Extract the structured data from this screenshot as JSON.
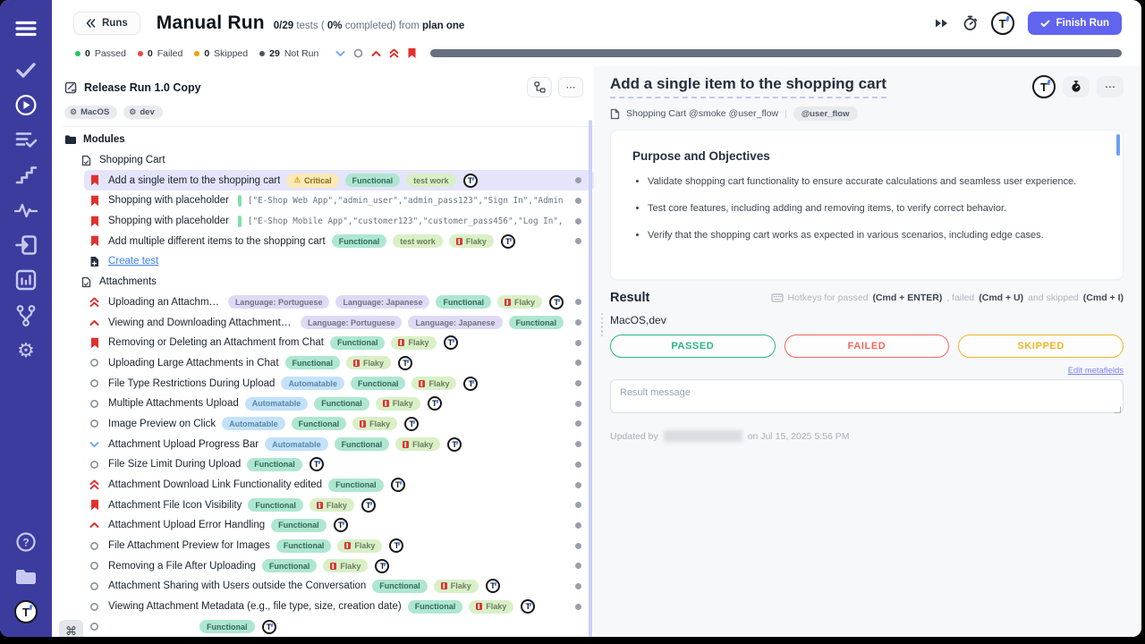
{
  "colors": {
    "accent": "#6064ee",
    "rail": "#3c3c9f",
    "passed": "#2cb386",
    "failed": "#f2685f",
    "skipped": "#f0b429",
    "critical": "#e0312f"
  },
  "sidebar": {
    "top": [
      "menu",
      "check",
      "play",
      "list-check",
      "steps",
      "pulse",
      "signin",
      "chart",
      "branch",
      "gear"
    ],
    "bottom": [
      "help",
      "folder",
      "logo"
    ],
    "active": "play"
  },
  "header": {
    "back_label": "Runs",
    "title": "Manual Run",
    "counts": "0/29",
    "tests_label": "tests (",
    "percent": "0%",
    "completed_label": "completed) from",
    "plan_name": "plan one",
    "finish_label": "Finish Run"
  },
  "status_bar": {
    "stats": [
      {
        "value": "0",
        "label": "Passed",
        "color": "#22c55e"
      },
      {
        "value": "0",
        "label": "Failed",
        "color": "#ef4444"
      },
      {
        "value": "0",
        "label": "Skipped",
        "color": "#f59e0b"
      },
      {
        "value": "29",
        "label": "Not Run",
        "color": "#4b5563"
      }
    ]
  },
  "left_panel": {
    "run_title": "Release Run 1.0 Copy",
    "tags": [
      "MacOS",
      "dev"
    ],
    "shortcut_key": "⌘",
    "rows": [
      {
        "kind": "folder",
        "title": "Modules"
      },
      {
        "kind": "file",
        "title": "Shopping Cart"
      },
      {
        "kind": "test",
        "icon": "bookmark",
        "selected": true,
        "logo": true,
        "dotted": true,
        "title": "Add a single item to the shopping cart",
        "badges": [
          {
            "t": "critical",
            "label": "Critical"
          },
          {
            "t": "functional",
            "label": "Functional"
          },
          {
            "t": "testwork",
            "label": "test work"
          }
        ]
      },
      {
        "kind": "test",
        "icon": "bookmark",
        "dotted": true,
        "title": "Shopping with placeholder",
        "code": "[\"E-Shop Web App\",\"admin_user\",\"admin_pass123\",\"Sign In\",\"Admin Dash…"
      },
      {
        "kind": "test",
        "icon": "bookmark",
        "dotted": true,
        "title": "Shopping with placeholder",
        "code": "[\"E-Shop Mobile App\",\"customer123\",\"customer_pass456\",\"Log In\",\"Welc…"
      },
      {
        "kind": "test",
        "icon": "bookmark",
        "logo": true,
        "dotted": true,
        "title": "Add multiple different items to the shopping cart",
        "badges": [
          {
            "t": "functional",
            "label": "Functional"
          },
          {
            "t": "testwork",
            "label": "test work"
          },
          {
            "t": "flaky",
            "label": "Flaky"
          }
        ]
      },
      {
        "kind": "create",
        "title": "Create test"
      },
      {
        "kind": "file",
        "title": "Attachments"
      },
      {
        "kind": "test",
        "icon": "chevup2",
        "logo": true,
        "dotted": true,
        "title": "Uploading an Attachment in Chat",
        "badges": [
          {
            "t": "language",
            "label": "Language: Portuguese"
          },
          {
            "t": "language",
            "label": "Language: Japanese"
          },
          {
            "t": "functional",
            "label": "Functional"
          },
          {
            "t": "flaky",
            "label": "Flaky"
          }
        ]
      },
      {
        "kind": "test",
        "icon": "chevup",
        "dotted": true,
        "title": "Viewing and Downloading Attachments in Chat",
        "badges": [
          {
            "t": "language",
            "label": "Language: Portuguese"
          },
          {
            "t": "language",
            "label": "Language: Japanese"
          },
          {
            "t": "functional",
            "label": "Functional"
          }
        ]
      },
      {
        "kind": "test",
        "icon": "bookmark",
        "logo": true,
        "dotted": true,
        "title": "Removing or Deleting an Attachment from Chat",
        "badges": [
          {
            "t": "functional",
            "label": "Functional"
          },
          {
            "t": "flaky",
            "label": "Flaky"
          }
        ]
      },
      {
        "kind": "test",
        "icon": "circle",
        "logo": true,
        "dotted": true,
        "title": "Uploading Large Attachments in Chat",
        "badges": [
          {
            "t": "functional",
            "label": "Functional"
          },
          {
            "t": "flaky",
            "label": "Flaky"
          }
        ]
      },
      {
        "kind": "test",
        "icon": "circle",
        "logo": true,
        "dotted": true,
        "title": "File Type Restrictions During Upload",
        "badges": [
          {
            "t": "automatable",
            "label": "Automatable"
          },
          {
            "t": "functional",
            "label": "Functional"
          },
          {
            "t": "flaky",
            "label": "Flaky"
          }
        ]
      },
      {
        "kind": "test",
        "icon": "circle",
        "logo": true,
        "dotted": true,
        "title": "Multiple Attachments Upload",
        "badges": [
          {
            "t": "automatable",
            "label": "Automatable"
          },
          {
            "t": "functional",
            "label": "Functional"
          },
          {
            "t": "flaky",
            "label": "Flaky"
          }
        ]
      },
      {
        "kind": "test",
        "icon": "circle",
        "logo": true,
        "dotted": true,
        "title": "Image Preview on Click",
        "badges": [
          {
            "t": "automatable",
            "label": "Automatable"
          },
          {
            "t": "functional",
            "label": "Functional"
          },
          {
            "t": "flaky",
            "label": "Flaky"
          }
        ]
      },
      {
        "kind": "test",
        "icon": "chevdown",
        "logo": true,
        "dotted": true,
        "title": "Attachment Upload Progress Bar",
        "badges": [
          {
            "t": "automatable",
            "label": "Automatable"
          },
          {
            "t": "functional",
            "label": "Functional"
          },
          {
            "t": "flaky",
            "label": "Flaky"
          }
        ]
      },
      {
        "kind": "test",
        "icon": "circle",
        "logo": true,
        "dotted": true,
        "title": "File Size Limit During Upload",
        "badges": [
          {
            "t": "functional",
            "label": "Functional"
          }
        ]
      },
      {
        "kind": "test",
        "icon": "chevup2",
        "logo": true,
        "dotted": true,
        "title": "Attachment Download Link Functionality edited",
        "badges": [
          {
            "t": "functional",
            "label": "Functional"
          }
        ]
      },
      {
        "kind": "test",
        "icon": "bookmark",
        "logo": true,
        "dotted": true,
        "title": "Attachment File Icon Visibility",
        "badges": [
          {
            "t": "functional",
            "label": "Functional"
          },
          {
            "t": "flaky",
            "label": "Flaky"
          }
        ]
      },
      {
        "kind": "test",
        "icon": "chevup",
        "logo": true,
        "dotted": true,
        "title": "Attachment Upload Error Handling",
        "badges": [
          {
            "t": "functional",
            "label": "Functional"
          }
        ]
      },
      {
        "kind": "test",
        "icon": "circle",
        "logo": true,
        "dotted": true,
        "title": "File Attachment Preview for Images",
        "badges": [
          {
            "t": "functional",
            "label": "Functional"
          },
          {
            "t": "flaky",
            "label": "Flaky"
          }
        ]
      },
      {
        "kind": "test",
        "icon": "circle",
        "logo": true,
        "dotted": true,
        "title": "Removing a File After Uploading",
        "badges": [
          {
            "t": "functional",
            "label": "Functional"
          },
          {
            "t": "flaky",
            "label": "Flaky"
          }
        ]
      },
      {
        "kind": "test",
        "icon": "circle",
        "logo": true,
        "dotted": true,
        "title": "Attachment Sharing with Users outside the Conversation",
        "badges": [
          {
            "t": "functional",
            "label": "Functional"
          },
          {
            "t": "flaky",
            "label": "Flaky"
          }
        ]
      },
      {
        "kind": "test",
        "icon": "circle",
        "logo": true,
        "dotted": true,
        "title": "Viewing Attachment Metadata (e.g., file type, size, creation date)",
        "badges": [
          {
            "t": "functional",
            "label": "Functional"
          },
          {
            "t": "flaky",
            "label": "Flaky"
          }
        ]
      },
      {
        "kind": "test",
        "icon": "circle",
        "partial": true,
        "logo": true,
        "title": "",
        "badges": [
          {
            "t": "functional",
            "label": "Functional"
          }
        ]
      }
    ]
  },
  "right_panel": {
    "title": "Add a single item to the shopping cart",
    "breadcrumb": "Shopping Cart @smoke @user_flow",
    "breadcrumb_tag": "@user_flow",
    "purpose_heading": "Purpose and Objectives",
    "bullets": [
      "Validate shopping cart functionality to ensure accurate calculations and seamless user experience.",
      "Test core features, including adding and removing items, to verify correct behavior.",
      "Verify that the shopping cart works as expected in various scenarios, including edge cases."
    ],
    "result_heading": "Result",
    "hotkeys": {
      "p1": "Hotkeys for passed",
      "k1": "(Cmd + ENTER)",
      "p2": ", failed",
      "k2": "(Cmd + U)",
      "p3": "and skipped",
      "k3": "(Cmd + I)"
    },
    "env_label": "MacOS,dev",
    "verdicts": [
      {
        "label": "PASSED",
        "color": "#2cb386"
      },
      {
        "label": "FAILED",
        "color": "#f2685f"
      },
      {
        "label": "SKIPPED",
        "color": "#f0b429"
      }
    ],
    "edit_link": "Edit metafields",
    "message_placeholder": "Result message",
    "updated_prefix": "Updated by",
    "updated_date": "on Jul 15, 2025 5:56 PM"
  }
}
